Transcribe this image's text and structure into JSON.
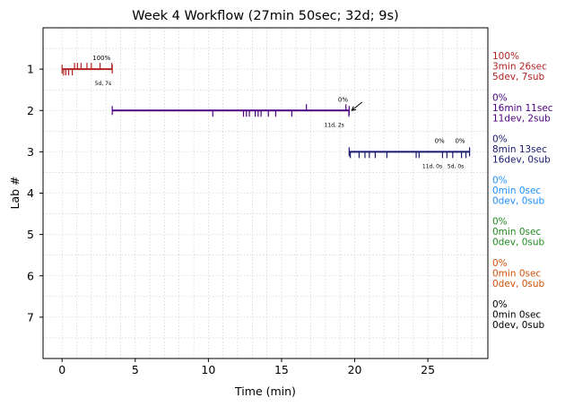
{
  "chart_data": {
    "type": "timeline",
    "title": "Week 4 Workflow (27min 50sec; 32d; 9s)",
    "xlabel": "Time (min)",
    "ylabel": "Lab #",
    "xlim": [
      -1.3,
      29.1
    ],
    "ylim": [
      8.0,
      0.0
    ],
    "x_ticks": [
      0,
      5,
      10,
      15,
      20,
      25
    ],
    "y_ticks": [
      1,
      2,
      3,
      4,
      5,
      6,
      7
    ],
    "grid": true,
    "labs": [
      {
        "lab": 1,
        "color": "#b22222",
        "start": 0.0,
        "end": 3.43,
        "marks_below": [
          0.1,
          0.25,
          0.45,
          0.7
        ],
        "marks_above": [
          0.85,
          1.05,
          1.3,
          1.7,
          2.0,
          2.6,
          3.4
        ],
        "percent_labels": [
          {
            "x": 2.7,
            "text": "100%"
          }
        ],
        "counts_labels": [
          {
            "x": 2.8,
            "text": "5d, 7s"
          }
        ],
        "summary": {
          "percent": "100%",
          "time": "3min 26sec",
          "counts": "5dev, 7sub"
        }
      },
      {
        "lab": 2,
        "color": "#4b0082",
        "start": 3.43,
        "end": 19.62,
        "marks_below": [
          10.3,
          12.4,
          12.6,
          12.8,
          13.2,
          13.4,
          13.6,
          14.1,
          14.6,
          15.7,
          19.6
        ],
        "marks_above": [
          16.7,
          19.4
        ],
        "percent_labels": [
          {
            "x": 19.2,
            "text": "0%"
          }
        ],
        "counts_labels": [
          {
            "x": 18.6,
            "text": "11d, 2s"
          }
        ],
        "summary": {
          "percent": "0%",
          "time": "16min 11sec",
          "counts": "11dev, 2sub"
        }
      },
      {
        "lab": 3,
        "color": "#191970",
        "start": 19.62,
        "end": 27.85,
        "marks_below": [
          19.7,
          20.3,
          20.7,
          21.0,
          21.4,
          22.2,
          24.2,
          24.4,
          26.0,
          26.3,
          26.7,
          27.3,
          27.6
        ],
        "marks_above": [],
        "percent_labels": [
          {
            "x": 25.8,
            "text": "0%"
          },
          {
            "x": 27.2,
            "text": "0%"
          }
        ],
        "counts_labels": [
          {
            "x": 25.3,
            "text": "11d, 0s"
          },
          {
            "x": 26.9,
            "text": "5d, 0s"
          }
        ],
        "summary": {
          "percent": "0%",
          "time": "8min 13sec",
          "counts": "16dev, 0sub"
        }
      },
      {
        "lab": 4,
        "color": "#1e90ff",
        "start": null,
        "end": null,
        "marks_below": [],
        "marks_above": [],
        "percent_labels": [],
        "counts_labels": [],
        "summary": {
          "percent": "0%",
          "time": "0min 0sec",
          "counts": "0dev, 0sub"
        }
      },
      {
        "lab": 5,
        "color": "#228b22",
        "start": null,
        "end": null,
        "marks_below": [],
        "marks_above": [],
        "percent_labels": [],
        "counts_labels": [],
        "summary": {
          "percent": "0%",
          "time": "0min 0sec",
          "counts": "0dev, 0sub"
        }
      },
      {
        "lab": 6,
        "color": "#d2520a",
        "start": null,
        "end": null,
        "marks_below": [],
        "marks_above": [],
        "percent_labels": [],
        "counts_labels": [],
        "summary": {
          "percent": "0%",
          "time": "0min 0sec",
          "counts": "0dev, 0sub"
        }
      },
      {
        "lab": 7,
        "color": "#000000",
        "start": null,
        "end": null,
        "marks_below": [],
        "marks_above": [],
        "percent_labels": [],
        "counts_labels": [],
        "summary": {
          "percent": "0%",
          "time": "0min 0sec",
          "counts": "0dev, 0sub"
        }
      }
    ],
    "arrow": {
      "from": [
        20.5,
        1.8
      ],
      "to": [
        19.8,
        2.0
      ]
    }
  }
}
